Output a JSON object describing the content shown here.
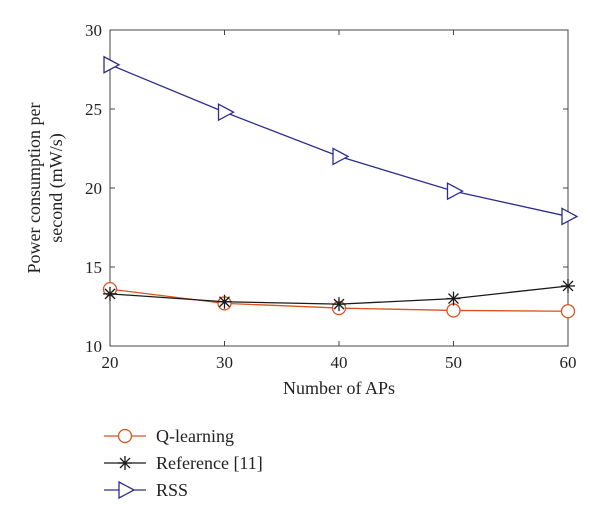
{
  "chart_data": {
    "type": "line",
    "title": "",
    "xlabel": "Number of APs",
    "ylabel_line1": "Power consumption per",
    "ylabel_line2": "second (mW/s)",
    "x": [
      20,
      30,
      40,
      50,
      60
    ],
    "xlim": [
      20,
      60
    ],
    "ylim": [
      10,
      30
    ],
    "xticks": [
      "20",
      "30",
      "40",
      "50",
      "60"
    ],
    "yticks": [
      "10",
      "15",
      "20",
      "25",
      "30"
    ],
    "grid": false,
    "legend_position": "below",
    "series": [
      {
        "name": "Q-learning",
        "values": [
          13.6,
          12.7,
          12.4,
          12.25,
          12.2
        ],
        "color": "#d9541e",
        "marker": "circle"
      },
      {
        "name": "Reference [11]",
        "values": [
          13.3,
          12.8,
          12.65,
          13.0,
          13.8
        ],
        "color": "#1a1a1a",
        "marker": "asterisk"
      },
      {
        "name": "RSS",
        "values": [
          27.8,
          24.8,
          22.0,
          19.8,
          18.2
        ],
        "color": "#2e2e8f",
        "marker": "triangle-right"
      }
    ]
  }
}
